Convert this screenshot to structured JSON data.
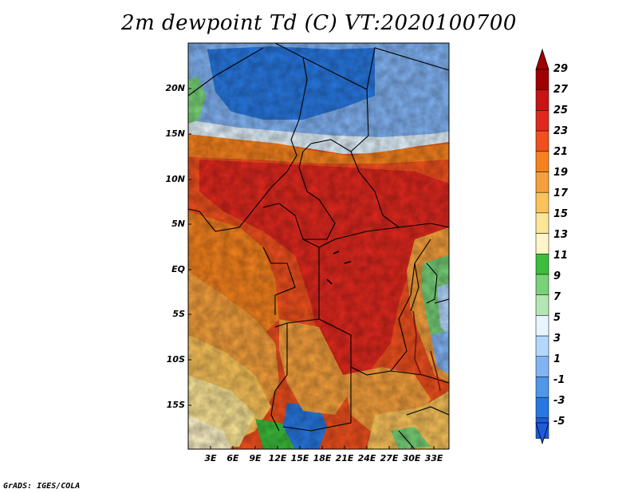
{
  "title": "2m dewpoint Td (C) VT:2020100700",
  "footer": "GrADS: IGES/COLA",
  "map": {
    "lat_labels": [
      "20N",
      "15N",
      "10N",
      "5N",
      "EQ",
      "5S",
      "10S",
      "15S"
    ],
    "lon_labels": [
      "3E",
      "6E",
      "9E",
      "12E",
      "15E",
      "18E",
      "21E",
      "24E",
      "27E",
      "30E",
      "33E"
    ]
  },
  "colorbar": {
    "labels": [
      "29",
      "27",
      "25",
      "23",
      "21",
      "19",
      "17",
      "15",
      "13",
      "11",
      "9",
      "7",
      "5",
      "3",
      "1",
      "-1",
      "-3",
      "-5"
    ],
    "colors": [
      "#a00000",
      "#c81414",
      "#e1281e",
      "#f0501e",
      "#f5821e",
      "#f5a03c",
      "#fac35a",
      "#fae696",
      "#fff5c8",
      "#3cbe3c",
      "#78d278",
      "#b4e6b4",
      "#e6f5ff",
      "#b4d7ff",
      "#82b4f5",
      "#5096eb",
      "#2878e1",
      "#1e5adc"
    ]
  }
}
